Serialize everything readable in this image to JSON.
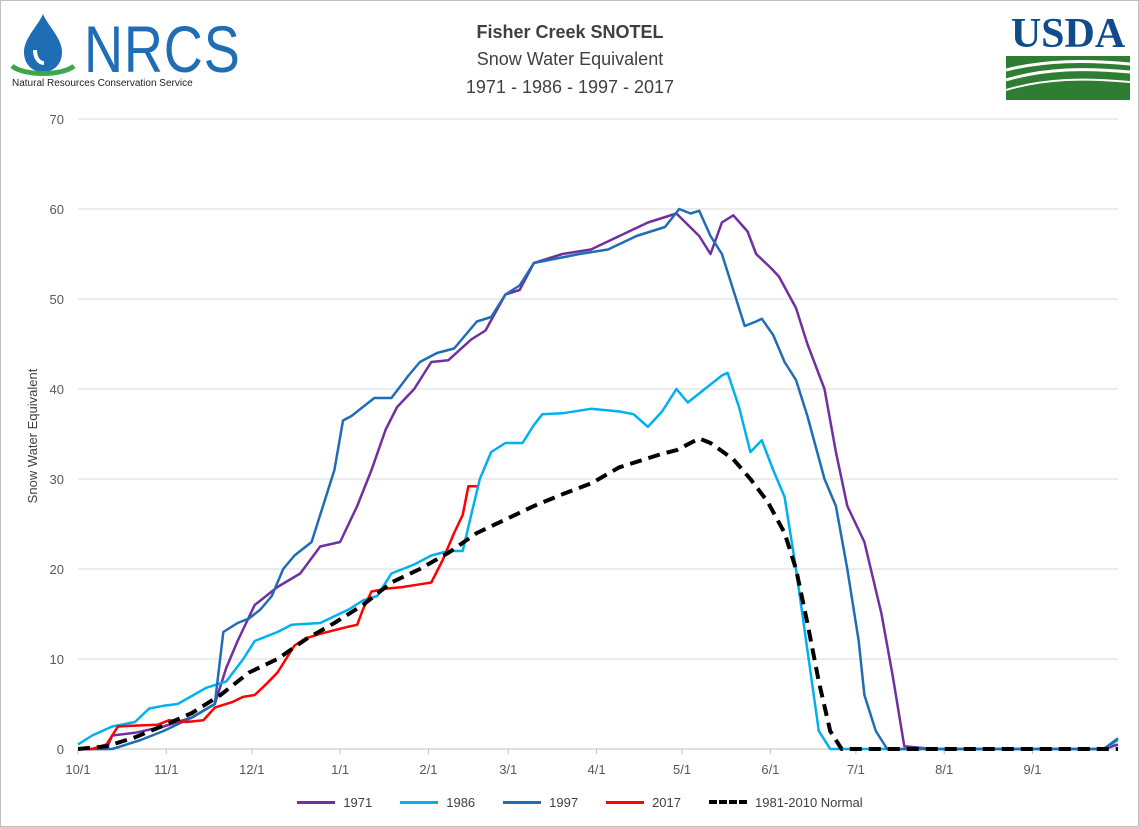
{
  "logo_left": {
    "text": "NRCS",
    "subtitle": "Natural Resources Conservation Service",
    "color": "#1f6db5"
  },
  "logo_right": {
    "text": "USDA",
    "color": "#0f4c8c",
    "accent": "#2e7d32"
  },
  "chart_data": {
    "type": "line",
    "title": "Fisher Creek SNOTEL",
    "subtitle": "Snow Water Equivalent",
    "subtitle2": "1971 - 1986 - 1997 - 2017",
    "xlabel": "",
    "ylabel": "Snow Water Equivalent",
    "ylim": [
      0,
      70
    ],
    "yticks": [
      0,
      10,
      20,
      30,
      40,
      50,
      60,
      70
    ],
    "xlim": [
      "10/1",
      "9/30"
    ],
    "xticks": [
      {
        "label": "10/1",
        "day": 0
      },
      {
        "label": "11/1",
        "day": 31
      },
      {
        "label": "12/1",
        "day": 61
      },
      {
        "label": "1/1",
        "day": 92
      },
      {
        "label": "2/1",
        "day": 123
      },
      {
        "label": "3/1",
        "day": 151
      },
      {
        "label": "4/1",
        "day": 182
      },
      {
        "label": "5/1",
        "day": 212
      },
      {
        "label": "6/1",
        "day": 243
      },
      {
        "label": "7/1",
        "day": 273
      },
      {
        "label": "8/1",
        "day": 304
      },
      {
        "label": "9/1",
        "day": 335
      }
    ],
    "grid": "horizontal",
    "legend_position": "bottom",
    "series": [
      {
        "name": "1971",
        "color": "#7030a0",
        "dash": false,
        "points": [
          [
            0,
            0
          ],
          [
            10,
            0
          ],
          [
            12,
            1.5
          ],
          [
            20,
            1.8
          ],
          [
            30,
            2.5
          ],
          [
            40,
            3.5
          ],
          [
            48,
            5
          ],
          [
            52,
            9
          ],
          [
            56,
            12
          ],
          [
            62,
            16
          ],
          [
            70,
            18
          ],
          [
            78,
            19.5
          ],
          [
            85,
            22.5
          ],
          [
            92,
            23
          ],
          [
            98,
            27
          ],
          [
            103,
            31
          ],
          [
            108,
            35.5
          ],
          [
            112,
            38
          ],
          [
            118,
            40
          ],
          [
            124,
            43
          ],
          [
            130,
            43.2
          ],
          [
            138,
            45.5
          ],
          [
            143,
            46.5
          ],
          [
            150,
            50.5
          ],
          [
            155,
            51
          ],
          [
            160,
            54
          ],
          [
            170,
            55
          ],
          [
            180,
            55.5
          ],
          [
            190,
            57
          ],
          [
            200,
            58.5
          ],
          [
            210,
            59.5
          ],
          [
            218,
            57
          ],
          [
            222,
            55
          ],
          [
            226,
            58.5
          ],
          [
            230,
            59.3
          ],
          [
            235,
            57.5
          ],
          [
            238,
            55
          ],
          [
            243,
            53.5
          ],
          [
            246,
            52.5
          ],
          [
            252,
            49
          ],
          [
            256,
            45
          ],
          [
            262,
            40
          ],
          [
            266,
            33
          ],
          [
            270,
            27
          ],
          [
            276,
            23
          ],
          [
            282,
            15
          ],
          [
            286,
            8
          ],
          [
            290,
            0.3
          ],
          [
            300,
            0
          ],
          [
            360,
            0
          ],
          [
            365,
            0.5
          ]
        ]
      },
      {
        "name": "1986",
        "color": "#00b0f0",
        "dash": false,
        "points": [
          [
            0,
            0.5
          ],
          [
            5,
            1.5
          ],
          [
            12,
            2.5
          ],
          [
            20,
            3
          ],
          [
            25,
            4.5
          ],
          [
            30,
            4.8
          ],
          [
            35,
            5
          ],
          [
            45,
            6.8
          ],
          [
            52,
            7.5
          ],
          [
            58,
            10
          ],
          [
            62,
            12
          ],
          [
            70,
            13
          ],
          [
            75,
            13.8
          ],
          [
            85,
            14
          ],
          [
            95,
            15.5
          ],
          [
            100,
            16.5
          ],
          [
            105,
            17
          ],
          [
            110,
            19.5
          ],
          [
            118,
            20.5
          ],
          [
            124,
            21.5
          ],
          [
            130,
            22
          ],
          [
            135,
            22
          ],
          [
            138,
            26
          ],
          [
            141,
            30
          ],
          [
            145,
            33
          ],
          [
            150,
            34
          ],
          [
            156,
            34
          ],
          [
            160,
            36
          ],
          [
            163,
            37.2
          ],
          [
            170,
            37.3
          ],
          [
            180,
            37.8
          ],
          [
            190,
            37.5
          ],
          [
            195,
            37.2
          ],
          [
            200,
            35.8
          ],
          [
            205,
            37.5
          ],
          [
            210,
            40
          ],
          [
            214,
            38.5
          ],
          [
            220,
            40
          ],
          [
            226,
            41.5
          ],
          [
            228,
            41.8
          ],
          [
            232,
            38
          ],
          [
            236,
            33
          ],
          [
            240,
            34.3
          ],
          [
            244,
            31
          ],
          [
            248,
            28
          ],
          [
            252,
            20
          ],
          [
            256,
            11
          ],
          [
            260,
            2
          ],
          [
            264,
            0
          ],
          [
            270,
            0
          ],
          [
            300,
            0
          ],
          [
            360,
            0
          ],
          [
            365,
            1
          ]
        ]
      },
      {
        "name": "1997",
        "color": "#1f6db5",
        "dash": false,
        "points": [
          [
            0,
            0
          ],
          [
            12,
            0
          ],
          [
            22,
            1
          ],
          [
            30,
            2
          ],
          [
            40,
            3.5
          ],
          [
            48,
            5
          ],
          [
            51,
            13
          ],
          [
            56,
            14
          ],
          [
            60,
            14.5
          ],
          [
            64,
            15.5
          ],
          [
            68,
            17
          ],
          [
            72,
            20
          ],
          [
            76,
            21.5
          ],
          [
            82,
            23
          ],
          [
            86,
            27
          ],
          [
            90,
            31
          ],
          [
            93,
            36.5
          ],
          [
            96,
            37
          ],
          [
            100,
            38
          ],
          [
            104,
            39
          ],
          [
            110,
            39
          ],
          [
            116,
            41.5
          ],
          [
            120,
            43
          ],
          [
            126,
            44
          ],
          [
            132,
            44.5
          ],
          [
            136,
            46
          ],
          [
            140,
            47.5
          ],
          [
            145,
            48
          ],
          [
            150,
            50.5
          ],
          [
            155,
            51.5
          ],
          [
            160,
            54
          ],
          [
            168,
            54.5
          ],
          [
            176,
            55
          ],
          [
            186,
            55.5
          ],
          [
            196,
            57
          ],
          [
            206,
            58
          ],
          [
            211,
            60
          ],
          [
            215,
            59.5
          ],
          [
            218,
            59.8
          ],
          [
            222,
            57
          ],
          [
            226,
            55
          ],
          [
            230,
            51
          ],
          [
            234,
            47
          ],
          [
            238,
            47.5
          ],
          [
            240,
            47.8
          ],
          [
            244,
            46
          ],
          [
            248,
            43
          ],
          [
            252,
            41
          ],
          [
            256,
            37
          ],
          [
            262,
            30
          ],
          [
            266,
            27
          ],
          [
            270,
            20
          ],
          [
            274,
            12
          ],
          [
            276,
            6
          ],
          [
            280,
            2
          ],
          [
            284,
            0
          ],
          [
            300,
            0
          ],
          [
            360,
            0
          ],
          [
            365,
            1.2
          ]
        ]
      },
      {
        "name": "2017",
        "color": "#ff0000",
        "dash": false,
        "points": [
          [
            0,
            0
          ],
          [
            5,
            0
          ],
          [
            10,
            0.5
          ],
          [
            14,
            2.5
          ],
          [
            20,
            2.6
          ],
          [
            28,
            2.7
          ],
          [
            32,
            3.2
          ],
          [
            38,
            3
          ],
          [
            44,
            3.2
          ],
          [
            48,
            4.6
          ],
          [
            54,
            5.2
          ],
          [
            58,
            5.8
          ],
          [
            62,
            6
          ],
          [
            66,
            7.2
          ],
          [
            70,
            8.5
          ],
          [
            73,
            10
          ],
          [
            76,
            11.5
          ],
          [
            80,
            12.3
          ],
          [
            85,
            12.8
          ],
          [
            90,
            13.2
          ],
          [
            95,
            13.6
          ],
          [
            98,
            13.8
          ],
          [
            100,
            15.5
          ],
          [
            103,
            17.5
          ],
          [
            108,
            17.8
          ],
          [
            114,
            18
          ],
          [
            120,
            18.3
          ],
          [
            124,
            18.5
          ],
          [
            128,
            21
          ],
          [
            132,
            24
          ],
          [
            135,
            26
          ],
          [
            137,
            29.2
          ],
          [
            140,
            29.2
          ]
        ]
      },
      {
        "name": "1981-2010 Normal",
        "color": "#000000",
        "dash": true,
        "points": [
          [
            0,
            0
          ],
          [
            10,
            0.3
          ],
          [
            20,
            1.3
          ],
          [
            30,
            2.6
          ],
          [
            40,
            4
          ],
          [
            50,
            6
          ],
          [
            60,
            8.5
          ],
          [
            70,
            10
          ],
          [
            80,
            12.2
          ],
          [
            90,
            14
          ],
          [
            100,
            16
          ],
          [
            110,
            18.5
          ],
          [
            120,
            20
          ],
          [
            130,
            21.8
          ],
          [
            140,
            24
          ],
          [
            150,
            25.5
          ],
          [
            160,
            27
          ],
          [
            170,
            28.3
          ],
          [
            180,
            29.5
          ],
          [
            190,
            31.3
          ],
          [
            200,
            32.3
          ],
          [
            205,
            32.8
          ],
          [
            210,
            33.2
          ],
          [
            218,
            34.5
          ],
          [
            222,
            34
          ],
          [
            230,
            32.2
          ],
          [
            236,
            30
          ],
          [
            242,
            27.5
          ],
          [
            248,
            24
          ],
          [
            252,
            20
          ],
          [
            256,
            14
          ],
          [
            260,
            7.5
          ],
          [
            264,
            2
          ],
          [
            268,
            0
          ],
          [
            280,
            0
          ],
          [
            360,
            0
          ],
          [
            365,
            0
          ]
        ]
      }
    ]
  }
}
